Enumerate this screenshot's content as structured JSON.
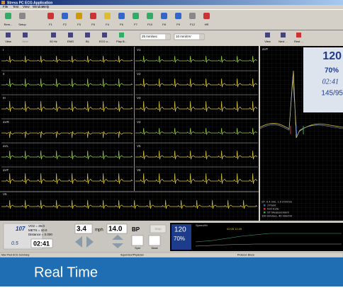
{
  "window": {
    "title": "Stress PC ECG Application",
    "menu": [
      "File",
      "Test",
      "View",
      "Window",
      "Help"
    ]
  },
  "toolbar": [
    "Rem...",
    "Setup",
    "F1",
    "F2",
    "F3",
    "F5",
    "F4",
    "F6",
    "F7",
    "F10",
    "F8",
    "F9",
    "F12",
    "HR"
  ],
  "toolbar2": {
    "buttons": [
      "View",
      "Next",
      "50 Hz",
      "EMG",
      "BL",
      "ECG o...",
      "Play B..."
    ],
    "speed": "25 mm/sec",
    "gain": "10 mm/mV"
  },
  "ecg": {
    "left_leads": [
      "I",
      "II",
      "III",
      "aVR",
      "aVL",
      "aVF"
    ],
    "right_leads": [
      "V1",
      "V2",
      "V3",
      "V4",
      "V5",
      "V6"
    ],
    "rhythm_lead": "V5"
  },
  "right_panel": {
    "buttons": [
      "View",
      "Next ...",
      "Rest ..."
    ],
    "lead": "aVF",
    "hr": "120",
    "spo2": "70%",
    "time": "02:41",
    "bp": "145/95",
    "legend": [
      "ST: 0.4 mm, 1.0 mV/mm",
      "J Point",
      "ISO Ectic",
      "ST Measurement",
      "100 mm/sec, 40 mm/mV"
    ]
  },
  "bottom": {
    "hr": "107",
    "vo2": "VO2 = 35.0",
    "mets": "METS = 10.0",
    "distance": "Distance = 0.000",
    "grade_small": "0.5",
    "time": "02:41",
    "speed": "3.4",
    "speed_unit": "mph",
    "grade": "14.0",
    "bp": "BP",
    "stop": "Stop",
    "syst": "Syst",
    "diast": "Diast",
    "hr2": "120",
    "spo2": "70%",
    "trend": "Speed/Hr",
    "trend_time": "02:05 12:49"
  },
  "status": [
    "Max Pred ECG Summary",
    "Supervisor/Physician",
    "Protocol: Bruce"
  ],
  "caption": "Real Time"
}
